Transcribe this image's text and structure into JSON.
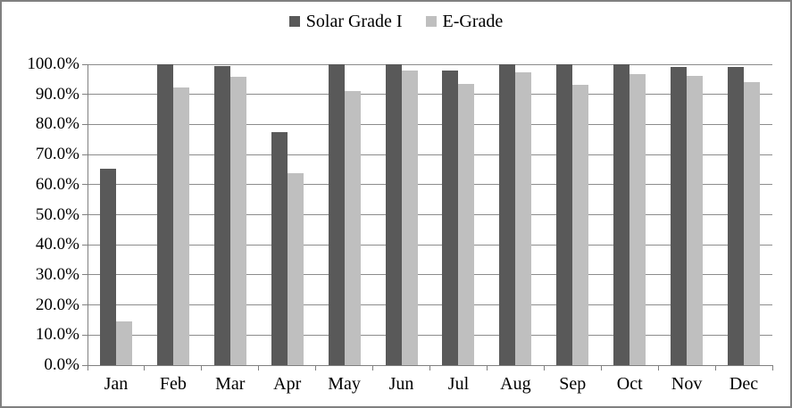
{
  "chart_data": {
    "type": "bar",
    "title": "",
    "xlabel": "",
    "ylabel": "",
    "categories": [
      "Jan",
      "Feb",
      "Mar",
      "Apr",
      "May",
      "Jun",
      "Jul",
      "Aug",
      "Sep",
      "Oct",
      "Nov",
      "Dec"
    ],
    "series": [
      {
        "name": "Solar Grade I",
        "color": "#595959",
        "values": [
          65.3,
          100.0,
          99.5,
          77.5,
          100.0,
          99.9,
          98.0,
          100.0,
          99.9,
          99.9,
          99.0,
          99.0
        ]
      },
      {
        "name": "E-Grade",
        "color": "#bfbfbf",
        "values": [
          14.4,
          92.2,
          95.8,
          63.9,
          91.0,
          98.0,
          93.5,
          97.4,
          93.3,
          96.7,
          96.0,
          94.2
        ]
      }
    ],
    "ylim": [
      0,
      100
    ],
    "y_tick_labels": [
      "0.0%",
      "10.0%",
      "20.0%",
      "30.0%",
      "40.0%",
      "50.0%",
      "60.0%",
      "70.0%",
      "80.0%",
      "90.0%",
      "100.0%"
    ],
    "grid": true,
    "legend_position": "top-center"
  },
  "colors": {
    "background": "#ffffff",
    "frame_border": "#808080",
    "axis": "#808080",
    "gridline": "#8c8c8c",
    "text": "#000000",
    "series_dark": "#595959",
    "series_light": "#bfbfbf"
  }
}
